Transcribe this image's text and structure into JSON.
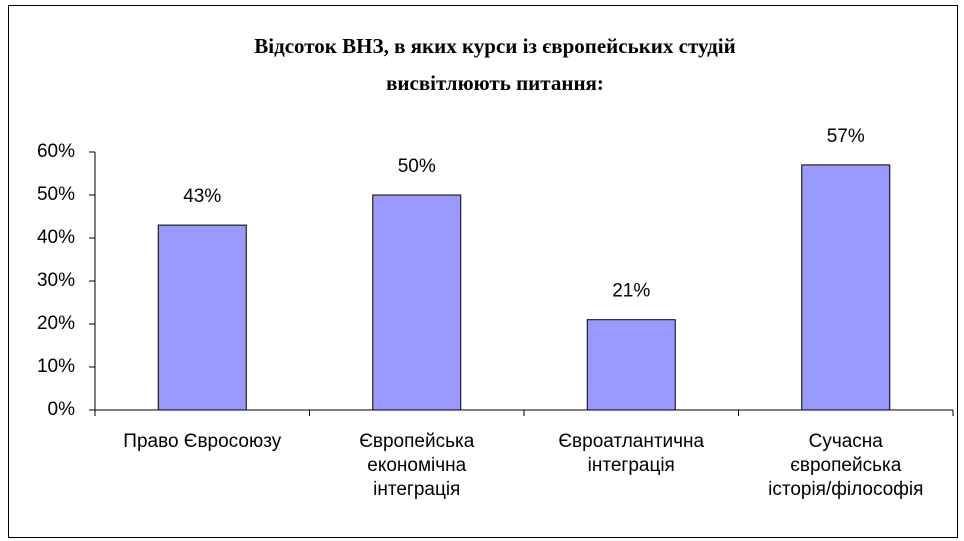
{
  "chart_data": {
    "type": "bar",
    "title": [
      "Відсоток ВНЗ, в яких курси із європейських студій",
      "висвітлюють питання:"
    ],
    "categories": [
      [
        "Право Євросоюзу"
      ],
      [
        "Європейська",
        "економічна",
        "інтеграція"
      ],
      [
        "Євроатлантична",
        "інтеграція"
      ],
      [
        "Сучасна",
        "європейська",
        "історія/філософія"
      ]
    ],
    "values": [
      43,
      50,
      21,
      57
    ],
    "value_labels": [
      "43%",
      "50%",
      "21%",
      "57%"
    ],
    "color": "#9999ff",
    "ylim": [
      0,
      60
    ],
    "yticks": [
      {
        "value": 0,
        "label": "0%"
      },
      {
        "value": 10,
        "label": "10%"
      },
      {
        "value": 20,
        "label": "20%"
      },
      {
        "value": 30,
        "label": "30%"
      },
      {
        "value": 40,
        "label": "40%"
      },
      {
        "value": 50,
        "label": "50%"
      },
      {
        "value": 60,
        "label": "60%"
      }
    ],
    "grid": false
  }
}
